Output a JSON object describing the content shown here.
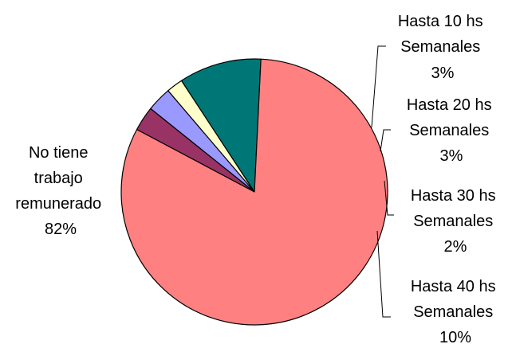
{
  "chart_data": {
    "type": "pie",
    "title": "",
    "slices": [
      {
        "label": [
          "Hasta 10 hs",
          "Semanales",
          "3%"
        ],
        "value": 3,
        "color": "#993366"
      },
      {
        "label": [
          "Hasta 20 hs",
          "Semanales",
          "3%"
        ],
        "value": 3,
        "color": "#9999FF"
      },
      {
        "label": [
          "Hasta 30 hs",
          "Semanales",
          "2%"
        ],
        "value": 2,
        "color": "#FFFFCC"
      },
      {
        "label": [
          "Hasta 40 hs",
          "Semanales",
          "10%"
        ],
        "value": 10,
        "color": "#007777"
      },
      {
        "label": [
          "No tiene",
          "trabajo",
          "remunerado",
          "82%"
        ],
        "value": 82,
        "color": "#FF8080"
      }
    ],
    "data_labels": "category-and-percent",
    "legend": "none"
  }
}
